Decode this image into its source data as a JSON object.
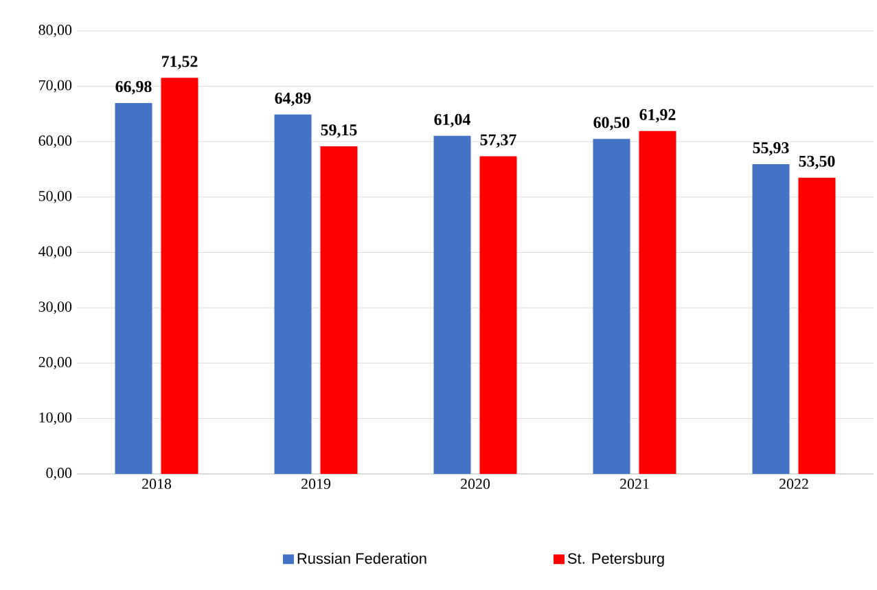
{
  "chart_data": {
    "type": "bar",
    "categories": [
      "2018",
      "2019",
      "2020",
      "2021",
      "2022"
    ],
    "series": [
      {
        "name": "Russian Federation",
        "color": "#4472c4",
        "values": [
          66.98,
          64.89,
          61.04,
          60.5,
          55.93
        ],
        "value_labels": [
          "66,98",
          "64,89",
          "61,04",
          "60,50",
          "55,93"
        ]
      },
      {
        "name": "St. Petersburg",
        "color": "#ff0000",
        "values": [
          71.52,
          59.15,
          57.37,
          61.92,
          53.5
        ],
        "value_labels": [
          "71,52",
          "59,15",
          "57,37",
          "61,92",
          "53,50"
        ]
      }
    ],
    "ylim": [
      0,
      80
    ],
    "yticks": [
      {
        "value": 0,
        "label": "0,00"
      },
      {
        "value": 10,
        "label": "10,00"
      },
      {
        "value": 20,
        "label": "20,00"
      },
      {
        "value": 30,
        "label": "30,00"
      },
      {
        "value": 40,
        "label": "40,00"
      },
      {
        "value": 50,
        "label": "50,00"
      },
      {
        "value": 60,
        "label": "60,00"
      },
      {
        "value": 70,
        "label": "70,00"
      },
      {
        "value": 80,
        "label": "80,00"
      }
    ],
    "grid": "y",
    "legend": "bottom"
  }
}
